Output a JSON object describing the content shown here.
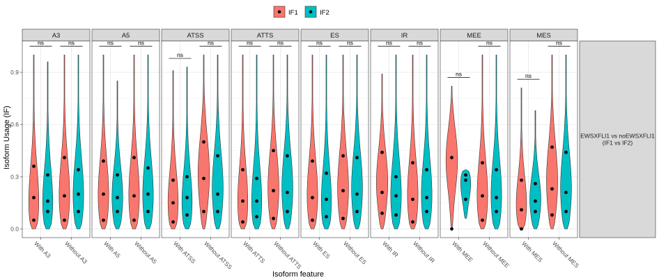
{
  "chart_data": {
    "type": "violin",
    "title": "",
    "xlabel": "Isoform feature",
    "ylabel": "Isoform Usage (IF)",
    "ylim": [
      -0.05,
      1.08
    ],
    "yticks": [
      "0.0",
      "0.3",
      "0.6",
      "0.9"
    ],
    "ytick_values": [
      0.0,
      0.3,
      0.6,
      0.9
    ],
    "grid": true,
    "legend_position": "top",
    "legend": [
      {
        "name": "IF1",
        "color": "#F8766D"
      },
      {
        "name": "IF2",
        "color": "#00BFC4"
      }
    ],
    "strip_label": "EWSXFLI1 vs noEWSXFLI1\n(IF1 vs IF2)",
    "significance_label": "ns",
    "facets": [
      {
        "name": "A3",
        "groups": [
          {
            "label": "With A3",
            "sig_y": 1.05,
            "if1": {
              "min": 0.0,
              "max": 1.0,
              "points": [
                0.05,
                0.18,
                0.36
              ],
              "mode": 0.1
            },
            "if2": {
              "min": 0.0,
              "max": 0.96,
              "points": [
                0.1,
                0.16,
                0.31
              ],
              "mode": 0.1
            }
          },
          {
            "label": "Without A3",
            "sig_y": 1.05,
            "if1": {
              "min": 0.0,
              "max": 1.0,
              "points": [
                0.05,
                0.19,
                0.41
              ],
              "mode": 0.15
            },
            "if2": {
              "min": 0.0,
              "max": 1.0,
              "points": [
                0.1,
                0.2,
                0.34
              ],
              "mode": 0.15
            }
          }
        ]
      },
      {
        "name": "A5",
        "groups": [
          {
            "label": "With A5",
            "sig_y": 1.05,
            "if1": {
              "min": 0.0,
              "max": 1.0,
              "points": [
                0.05,
                0.2,
                0.39
              ],
              "mode": 0.15
            },
            "if2": {
              "min": 0.0,
              "max": 0.85,
              "points": [
                0.1,
                0.18,
                0.31
              ],
              "mode": 0.15
            }
          },
          {
            "label": "Without A5",
            "sig_y": 1.05,
            "if1": {
              "min": 0.0,
              "max": 1.0,
              "points": [
                0.05,
                0.19,
                0.41
              ],
              "mode": 0.15
            },
            "if2": {
              "min": 0.0,
              "max": 1.0,
              "points": [
                0.1,
                0.2,
                0.35
              ],
              "mode": 0.15
            }
          }
        ]
      },
      {
        "name": "ATSS",
        "groups": [
          {
            "label": "With ATSS",
            "sig_y": 0.98,
            "if1": {
              "min": 0.0,
              "max": 0.91,
              "points": [
                0.04,
                0.15,
                0.28
              ],
              "mode": 0.1
            },
            "if2": {
              "min": 0.0,
              "max": 0.93,
              "points": [
                0.08,
                0.18,
                0.3
              ],
              "mode": 0.1
            }
          },
          {
            "label": "Without ATSS",
            "sig_y": 1.05,
            "if1": {
              "min": 0.0,
              "max": 1.0,
              "points": [
                0.1,
                0.29,
                0.5
              ],
              "mode": 0.3
            },
            "if2": {
              "min": 0.0,
              "max": 1.0,
              "points": [
                0.1,
                0.2,
                0.42
              ],
              "mode": 0.2
            }
          }
        ]
      },
      {
        "name": "ATTS",
        "groups": [
          {
            "label": "With ATTS",
            "sig_y": 1.05,
            "if1": {
              "min": 0.0,
              "max": 1.0,
              "points": [
                0.04,
                0.16,
                0.34
              ],
              "mode": 0.1
            },
            "if2": {
              "min": 0.0,
              "max": 1.0,
              "points": [
                0.07,
                0.16,
                0.29
              ],
              "mode": 0.1
            }
          },
          {
            "label": "Without ATTS",
            "sig_y": 1.05,
            "if1": {
              "min": 0.0,
              "max": 1.0,
              "points": [
                0.06,
                0.22,
                0.45
              ],
              "mode": 0.2
            },
            "if2": {
              "min": 0.0,
              "max": 1.0,
              "points": [
                0.1,
                0.21,
                0.42
              ],
              "mode": 0.2
            }
          }
        ]
      },
      {
        "name": "ES",
        "groups": [
          {
            "label": "With ES",
            "sig_y": 1.05,
            "if1": {
              "min": 0.0,
              "max": 1.0,
              "points": [
                0.05,
                0.18,
                0.39
              ],
              "mode": 0.15
            },
            "if2": {
              "min": 0.0,
              "max": 1.0,
              "points": [
                0.07,
                0.17,
                0.32
              ],
              "mode": 0.1
            }
          },
          {
            "label": "Without ES",
            "sig_y": 1.05,
            "if1": {
              "min": 0.0,
              "max": 1.0,
              "points": [
                0.06,
                0.22,
                0.42
              ],
              "mode": 0.2
            },
            "if2": {
              "min": 0.0,
              "max": 1.0,
              "points": [
                0.1,
                0.2,
                0.41
              ],
              "mode": 0.2
            }
          }
        ]
      },
      {
        "name": "IR",
        "groups": [
          {
            "label": "With IR",
            "sig_y": 1.05,
            "if1": {
              "min": 0.0,
              "max": 0.89,
              "points": [
                0.09,
                0.21,
                0.44
              ],
              "mode": 0.25
            },
            "if2": {
              "min": 0.0,
              "max": 1.0,
              "points": [
                0.08,
                0.19,
                0.3
              ],
              "mode": 0.15
            }
          },
          {
            "label": "Without IR",
            "sig_y": 1.05,
            "if1": {
              "min": 0.0,
              "max": 1.0,
              "points": [
                0.04,
                0.17,
                0.38
              ],
              "mode": 0.15
            },
            "if2": {
              "min": 0.0,
              "max": 1.0,
              "points": [
                0.1,
                0.18,
                0.34
              ],
              "mode": 0.15
            }
          }
        ]
      },
      {
        "name": "MEE",
        "groups": [
          {
            "label": "With MEE",
            "sig_y": 0.87,
            "if1": {
              "min": 0.0,
              "max": 0.82,
              "points": [
                0.0,
                0.41
              ],
              "mode": 0.4
            },
            "if2": {
              "min": 0.06,
              "max": 0.34,
              "points": [
                0.17,
                0.28,
                0.31
              ],
              "mode": 0.3
            }
          },
          {
            "label": "Without MEE",
            "sig_y": 1.05,
            "if1": {
              "min": 0.0,
              "max": 1.0,
              "points": [
                0.05,
                0.19,
                0.38
              ],
              "mode": 0.15
            },
            "if2": {
              "min": 0.0,
              "max": 1.0,
              "points": [
                0.1,
                0.18,
                0.34
              ],
              "mode": 0.15
            }
          }
        ]
      },
      {
        "name": "MES",
        "groups": [
          {
            "label": "With MES",
            "sig_y": 0.86,
            "if1": {
              "min": 0.0,
              "max": 0.81,
              "points": [
                0.0,
                0.11,
                0.28
              ],
              "mode": 0.1
            },
            "if2": {
              "min": 0.0,
              "max": 0.68,
              "points": [
                0.1,
                0.16,
                0.26
              ],
              "mode": 0.15
            }
          },
          {
            "label": "Without MES",
            "sig_y": 1.05,
            "if1": {
              "min": 0.0,
              "max": 1.0,
              "points": [
                0.08,
                0.23,
                0.47
              ],
              "mode": 0.25
            },
            "if2": {
              "min": 0.0,
              "max": 1.0,
              "points": [
                0.1,
                0.21,
                0.44
              ],
              "mode": 0.2
            }
          }
        ]
      }
    ]
  }
}
